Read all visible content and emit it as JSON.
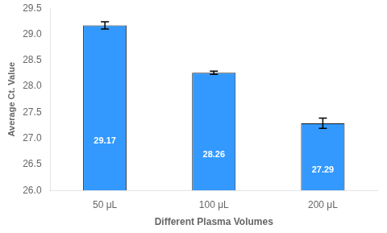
{
  "chart_data": {
    "type": "bar",
    "categories": [
      "50 μL",
      "100 μL",
      "200 μL"
    ],
    "values": [
      29.17,
      28.26,
      27.29
    ],
    "errors": [
      0.07,
      0.03,
      0.1
    ],
    "color": "#3399FF",
    "xlabel": "Different Plasma Volumes",
    "ylabel": "Average Ct. Value",
    "ylim": [
      26.0,
      29.5
    ],
    "yticks": [
      {
        "value": 26,
        "label": "26.0"
      },
      26.5,
      {
        "value": 27,
        "label": "27.0"
      },
      27.5,
      {
        "value": 28,
        "label": "28.0"
      },
      28.5,
      {
        "value": 29,
        "label": "29.0"
      },
      29.5
    ],
    "grid": false,
    "data_labels": true
  }
}
